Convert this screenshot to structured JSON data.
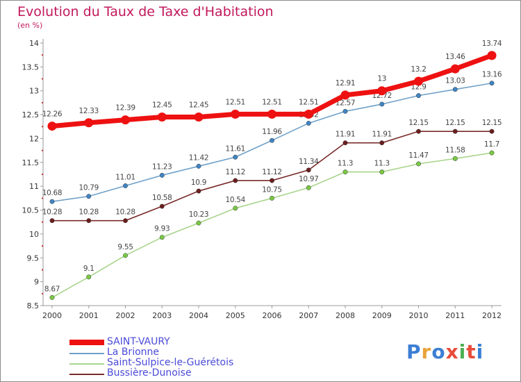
{
  "header": {
    "title": "Evolution du Taux de Taxe d'Habitation",
    "subtitle": "(en %)"
  },
  "logo": {
    "text": "Proxiti",
    "colors": [
      "#3b7fd4",
      "#e8a33b",
      "#3b7fd4",
      "#e84c3b",
      "#4caf50",
      "#e84c3b",
      "#3b7fd4"
    ]
  },
  "chart_data": {
    "type": "line",
    "title": "Evolution du Taux de Taxe d'Habitation",
    "ylabel": "(en %)",
    "xlabel": "",
    "categories": [
      "2000",
      "2001",
      "2002",
      "2003",
      "2004",
      "2005",
      "2006",
      "2007",
      "2008",
      "2009",
      "2010",
      "2011",
      "2012"
    ],
    "ylim": [
      8.5,
      14
    ],
    "yticks": [
      "8.5",
      "9",
      "9.5",
      "10",
      "10.5",
      "11",
      "11.5",
      "12",
      "12.5",
      "13",
      "13.5",
      "14"
    ],
    "grid": false,
    "legend_position": "bottom-left",
    "series": [
      {
        "name": "SAINT-VAURY",
        "color": "#ee1111",
        "emphasis": true,
        "values": [
          12.26,
          12.33,
          12.39,
          12.45,
          12.45,
          12.51,
          12.51,
          12.51,
          12.91,
          13,
          13.2,
          13.46,
          13.74
        ],
        "labels": [
          "12.26",
          "12.33",
          "12.39",
          "12.45",
          "12.45",
          "12.51",
          "12.51",
          "12.51",
          "12.91",
          "13",
          "13.2",
          "13.46",
          "13.74"
        ]
      },
      {
        "name": "La Brionne",
        "color": "#6ea0c8",
        "marker": "#3f85c4",
        "values": [
          10.68,
          10.79,
          11.01,
          11.23,
          11.42,
          11.61,
          11.96,
          12.32,
          12.57,
          12.72,
          12.9,
          13.03,
          13.16
        ],
        "labels": [
          "10.68",
          "10.79",
          "11.01",
          "11.23",
          "11.42",
          "11.61",
          "11.96",
          "12.32",
          "12.57",
          "12.72",
          "12.9",
          "13.03",
          "13.16"
        ]
      },
      {
        "name": "Saint-Sulpice-le-Guérétois",
        "color": "#a8d58c",
        "marker": "#7ac943",
        "values": [
          8.67,
          9.1,
          9.55,
          9.93,
          10.23,
          10.54,
          10.75,
          10.97,
          11.3,
          11.3,
          11.47,
          11.58,
          11.7
        ],
        "labels": [
          "8.67",
          "9.1",
          "9.55",
          "9.93",
          "10.23",
          "10.54",
          "10.75",
          "10.97",
          "11.3",
          "11.3",
          "11.47",
          "11.58",
          "11.7"
        ]
      },
      {
        "name": "Bussière-Dunoise",
        "color": "#7a2a2a",
        "marker": "#6b1e1e",
        "values": [
          10.28,
          10.28,
          10.28,
          10.58,
          10.9,
          11.12,
          11.12,
          11.34,
          11.91,
          11.91,
          12.15,
          12.15,
          12.15
        ],
        "labels": [
          "10.28",
          "10.28",
          "10.28",
          "10.58",
          "10.9",
          "11.12",
          "11.12",
          "11.34",
          "11.91",
          "11.91",
          "12.15",
          "12.15",
          "12.15"
        ]
      }
    ]
  }
}
